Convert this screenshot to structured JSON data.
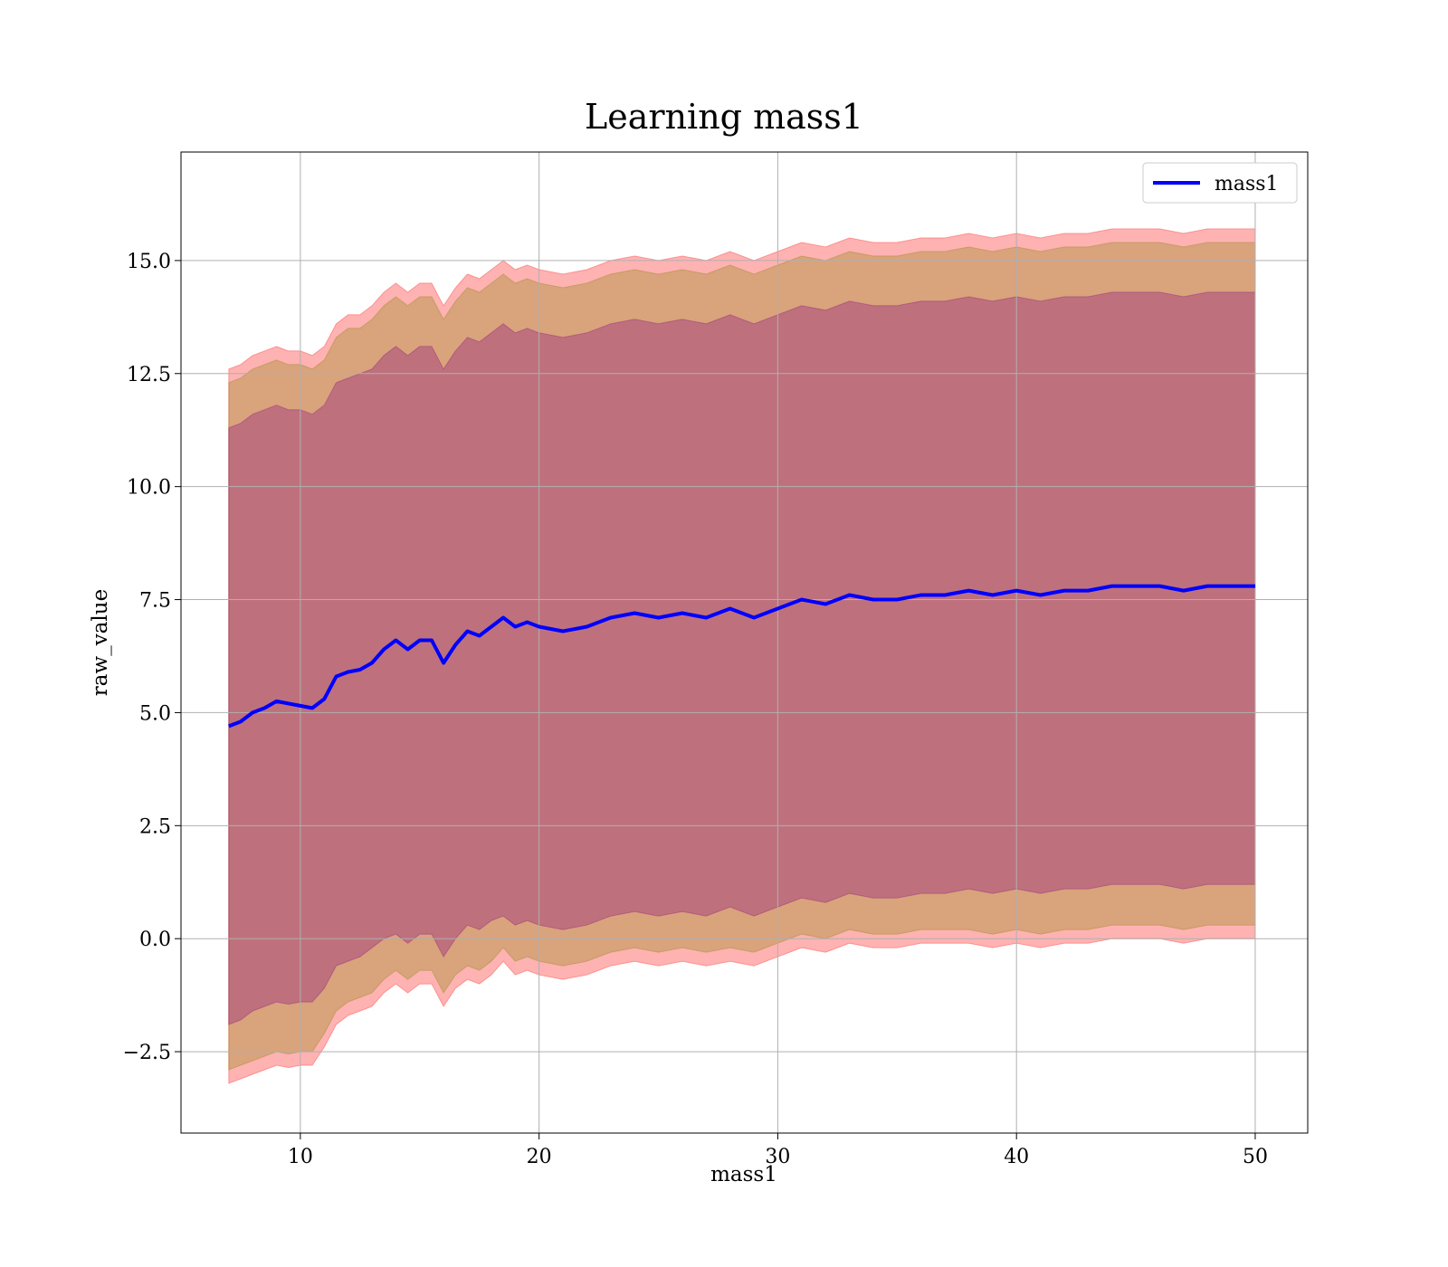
{
  "chart_data": {
    "type": "area",
    "title": "Learning mass1",
    "xlabel": "mass1",
    "ylabel": "raw_value",
    "xlim": [
      5,
      52.2
    ],
    "ylim": [
      -4.3,
      17.4
    ],
    "xticks": [
      10,
      20,
      30,
      40,
      50
    ],
    "xtick_labels": [
      "10",
      "20",
      "30",
      "40",
      "50"
    ],
    "yticks": [
      -2.5,
      0.0,
      2.5,
      5.0,
      7.5,
      10.0,
      12.5,
      15.0
    ],
    "ytick_labels": [
      "−2.5",
      "0.0",
      "2.5",
      "5.0",
      "7.5",
      "10.0",
      "12.5",
      "15.0"
    ],
    "grid": true,
    "legend_position": "top-right",
    "series": [
      {
        "name": "mass1",
        "color": "#0000ff",
        "x": [
          7.0,
          7.5,
          8.0,
          8.5,
          9.0,
          9.5,
          10.0,
          10.5,
          11.0,
          11.5,
          12.0,
          12.5,
          13.0,
          13.5,
          14.0,
          14.5,
          15.0,
          15.5,
          16.0,
          16.5,
          17.0,
          17.5,
          18.0,
          18.5,
          19.0,
          19.5,
          20.0,
          21.0,
          22.0,
          23.0,
          24.0,
          25.0,
          26.0,
          27.0,
          28.0,
          29.0,
          30.0,
          31.0,
          32.0,
          33.0,
          34.0,
          35.0,
          36.0,
          37.0,
          38.0,
          39.0,
          40.0,
          41.0,
          42.0,
          43.0,
          44.0,
          45.0,
          46.0,
          47.0,
          48.0,
          49.0,
          50.0
        ],
        "values": [
          4.7,
          4.8,
          5.0,
          5.1,
          5.25,
          5.2,
          5.15,
          5.1,
          5.3,
          5.8,
          5.9,
          5.95,
          6.1,
          6.4,
          6.6,
          6.4,
          6.6,
          6.6,
          6.1,
          6.5,
          6.8,
          6.7,
          6.9,
          7.1,
          6.9,
          7.0,
          6.9,
          6.8,
          6.9,
          7.1,
          7.2,
          7.1,
          7.2,
          7.1,
          7.3,
          7.1,
          7.3,
          7.5,
          7.4,
          7.6,
          7.5,
          7.5,
          7.6,
          7.6,
          7.7,
          7.6,
          7.7,
          7.6,
          7.7,
          7.7,
          7.8,
          7.8,
          7.8,
          7.7,
          7.8,
          7.8,
          7.8
        ]
      }
    ],
    "bands": [
      {
        "description_color": "#ff0000",
        "opacity": 0.3,
        "lower": [
          -3.2,
          -3.1,
          -3.0,
          -2.9,
          -2.8,
          -2.85,
          -2.8,
          -2.8,
          -2.4,
          -1.9,
          -1.7,
          -1.6,
          -1.5,
          -1.2,
          -1.0,
          -1.2,
          -1.0,
          -1.0,
          -1.5,
          -1.1,
          -0.9,
          -1.0,
          -0.8,
          -0.5,
          -0.8,
          -0.7,
          -0.8,
          -0.9,
          -0.8,
          -0.6,
          -0.5,
          -0.6,
          -0.5,
          -0.6,
          -0.5,
          -0.6,
          -0.4,
          -0.2,
          -0.3,
          -0.1,
          -0.2,
          -0.2,
          -0.1,
          -0.1,
          -0.1,
          -0.2,
          -0.1,
          -0.2,
          -0.1,
          -0.1,
          0.0,
          0.0,
          0.0,
          -0.1,
          0.0,
          0.0,
          0.0
        ],
        "upper": [
          12.6,
          12.7,
          12.9,
          13.0,
          13.1,
          13.0,
          13.0,
          12.9,
          13.1,
          13.6,
          13.8,
          13.8,
          14.0,
          14.3,
          14.5,
          14.3,
          14.5,
          14.5,
          14.0,
          14.4,
          14.7,
          14.6,
          14.8,
          15.0,
          14.8,
          14.9,
          14.8,
          14.7,
          14.8,
          15.0,
          15.1,
          15.0,
          15.1,
          15.0,
          15.2,
          15.0,
          15.2,
          15.4,
          15.3,
          15.5,
          15.4,
          15.4,
          15.5,
          15.5,
          15.6,
          15.5,
          15.6,
          15.5,
          15.6,
          15.6,
          15.7,
          15.7,
          15.7,
          15.6,
          15.7,
          15.7,
          15.7
        ]
      },
      {
        "description_color": "#808000",
        "opacity": 0.3,
        "lower": [
          -2.9,
          -2.8,
          -2.7,
          -2.6,
          -2.5,
          -2.55,
          -2.5,
          -2.5,
          -2.1,
          -1.6,
          -1.4,
          -1.3,
          -1.2,
          -0.9,
          -0.7,
          -0.9,
          -0.7,
          -0.7,
          -1.2,
          -0.8,
          -0.6,
          -0.7,
          -0.5,
          -0.2,
          -0.5,
          -0.4,
          -0.5,
          -0.6,
          -0.5,
          -0.3,
          -0.2,
          -0.3,
          -0.2,
          -0.3,
          -0.2,
          -0.3,
          -0.1,
          0.1,
          0.0,
          0.2,
          0.1,
          0.1,
          0.2,
          0.2,
          0.2,
          0.1,
          0.2,
          0.1,
          0.2,
          0.2,
          0.3,
          0.3,
          0.3,
          0.2,
          0.3,
          0.3,
          0.3
        ],
        "upper": [
          12.3,
          12.4,
          12.6,
          12.7,
          12.8,
          12.7,
          12.7,
          12.6,
          12.8,
          13.3,
          13.5,
          13.5,
          13.7,
          14.0,
          14.2,
          14.0,
          14.2,
          14.2,
          13.7,
          14.1,
          14.4,
          14.3,
          14.5,
          14.7,
          14.5,
          14.6,
          14.5,
          14.4,
          14.5,
          14.7,
          14.8,
          14.7,
          14.8,
          14.7,
          14.9,
          14.7,
          14.9,
          15.1,
          15.0,
          15.2,
          15.1,
          15.1,
          15.2,
          15.2,
          15.3,
          15.2,
          15.3,
          15.2,
          15.3,
          15.3,
          15.4,
          15.4,
          15.4,
          15.3,
          15.4,
          15.4,
          15.4
        ]
      },
      {
        "description_color": "#800080",
        "opacity": 0.3,
        "lower": [
          -1.9,
          -1.8,
          -1.6,
          -1.5,
          -1.4,
          -1.45,
          -1.4,
          -1.4,
          -1.1,
          -0.6,
          -0.5,
          -0.4,
          -0.2,
          0.0,
          0.1,
          -0.1,
          0.1,
          0.1,
          -0.4,
          0.0,
          0.3,
          0.2,
          0.4,
          0.5,
          0.3,
          0.4,
          0.3,
          0.2,
          0.3,
          0.5,
          0.6,
          0.5,
          0.6,
          0.5,
          0.7,
          0.5,
          0.7,
          0.9,
          0.8,
          1.0,
          0.9,
          0.9,
          1.0,
          1.0,
          1.1,
          1.0,
          1.1,
          1.0,
          1.1,
          1.1,
          1.2,
          1.2,
          1.2,
          1.1,
          1.2,
          1.2,
          1.2
        ],
        "upper": [
          11.3,
          11.4,
          11.6,
          11.7,
          11.8,
          11.7,
          11.7,
          11.6,
          11.8,
          12.3,
          12.4,
          12.5,
          12.6,
          12.9,
          13.1,
          12.9,
          13.1,
          13.1,
          12.6,
          13.0,
          13.3,
          13.2,
          13.4,
          13.6,
          13.4,
          13.5,
          13.4,
          13.3,
          13.4,
          13.6,
          13.7,
          13.6,
          13.7,
          13.6,
          13.8,
          13.6,
          13.8,
          14.0,
          13.9,
          14.1,
          14.0,
          14.0,
          14.1,
          14.1,
          14.2,
          14.1,
          14.2,
          14.1,
          14.2,
          14.2,
          14.3,
          14.3,
          14.3,
          14.2,
          14.3,
          14.3,
          14.3
        ]
      }
    ]
  },
  "colors": {
    "line": "#0000ff",
    "band_outer": "#ff0000",
    "band_middle": "#808000",
    "band_inner": "#800080"
  }
}
